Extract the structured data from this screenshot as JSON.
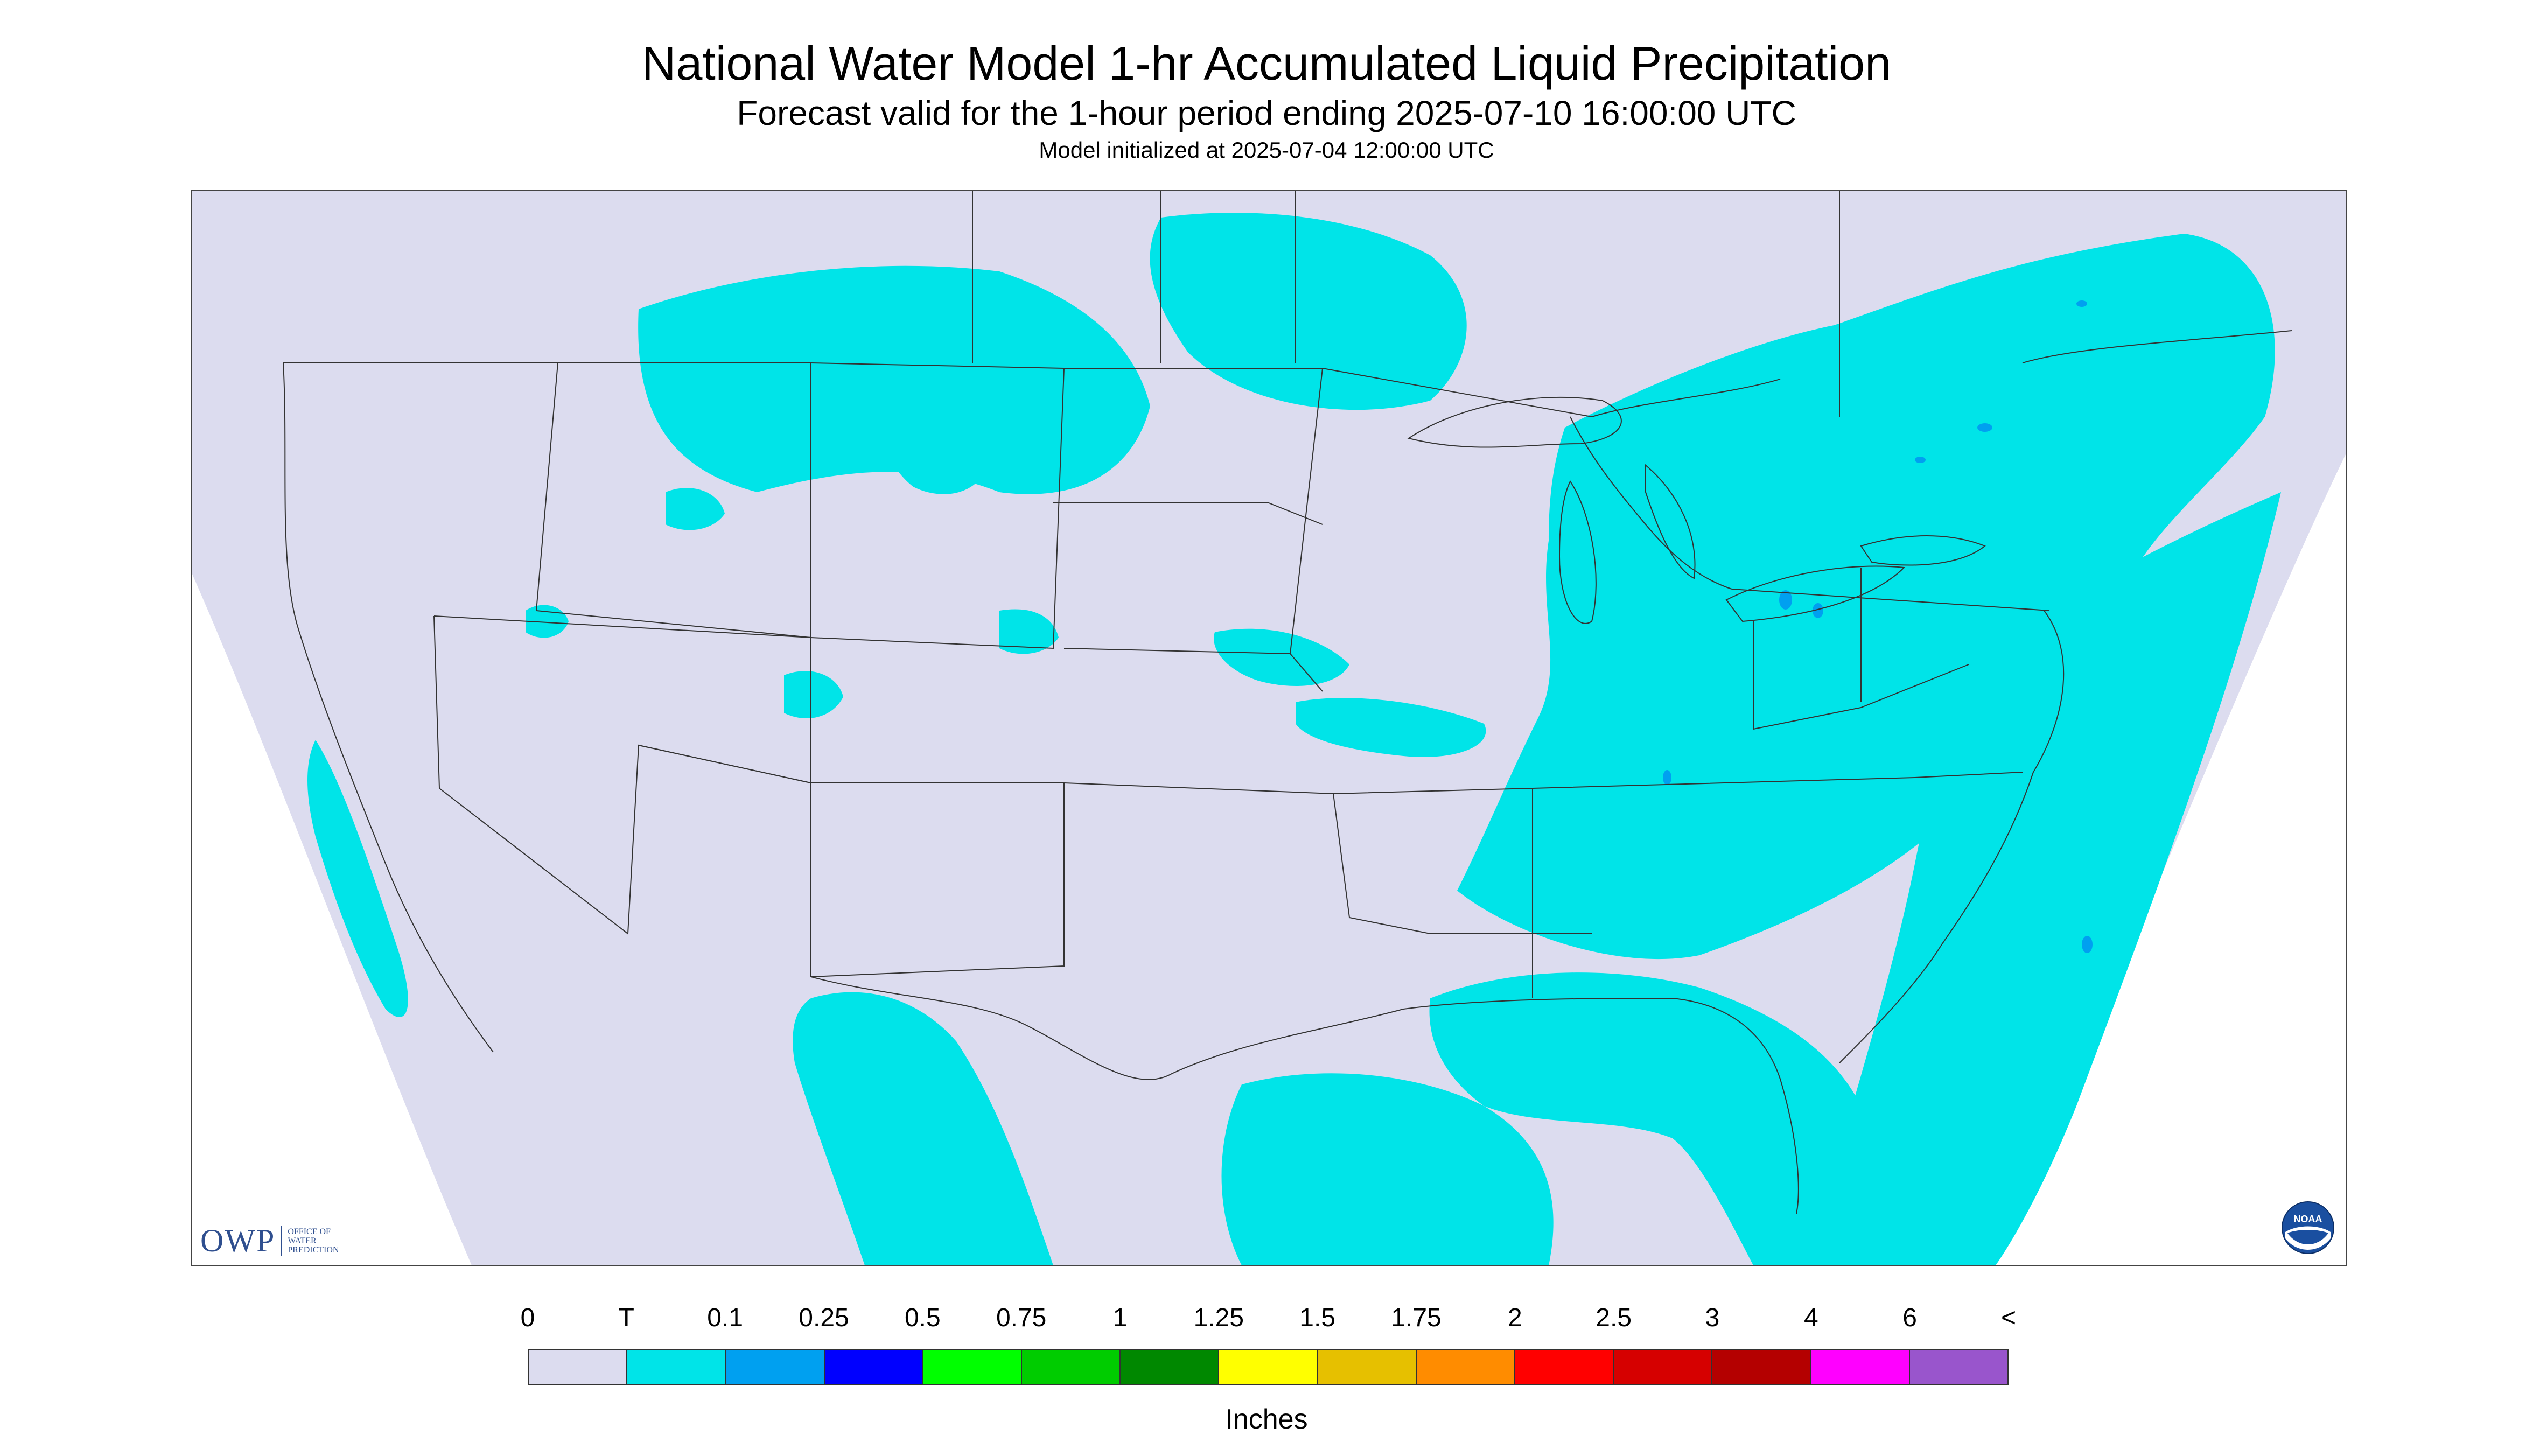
{
  "title": "National Water Model 1-hr Accumulated Liquid Precipitation",
  "subtitle": "Forecast valid for the 1-hour period ending 2025-07-10 16:00:00 UTC",
  "init": "Model initialized at 2025-07-04 12:00:00 UTC",
  "logo": {
    "owp_mark": "OWP",
    "owp_office": "OFFICE OF WATER PREDICTION",
    "noaa": "NOAA",
    "icon_name": "noaa-logo-icon"
  },
  "legend": {
    "labels": [
      "0",
      "T",
      "0.1",
      "0.25",
      "0.5",
      "0.75",
      "1",
      "1.25",
      "1.5",
      "1.75",
      "2",
      "2.5",
      "3",
      "4",
      "6",
      "<"
    ],
    "colors": [
      "#dcdcef",
      "#00e4e8",
      "#00a0f0",
      "#0000ff",
      "#00ff00",
      "#00cc00",
      "#008800",
      "#ffff00",
      "#e6c000",
      "#ff8c00",
      "#ff0000",
      "#d60000",
      "#b40000",
      "#ff00ff",
      "#9955cc"
    ],
    "units": "Inches"
  },
  "map_colors": {
    "background": "#dcdcef",
    "outside": "#ffffff",
    "trace": "#00e4e8",
    "light": "#00a0f0",
    "boundaries": "#333333"
  }
}
